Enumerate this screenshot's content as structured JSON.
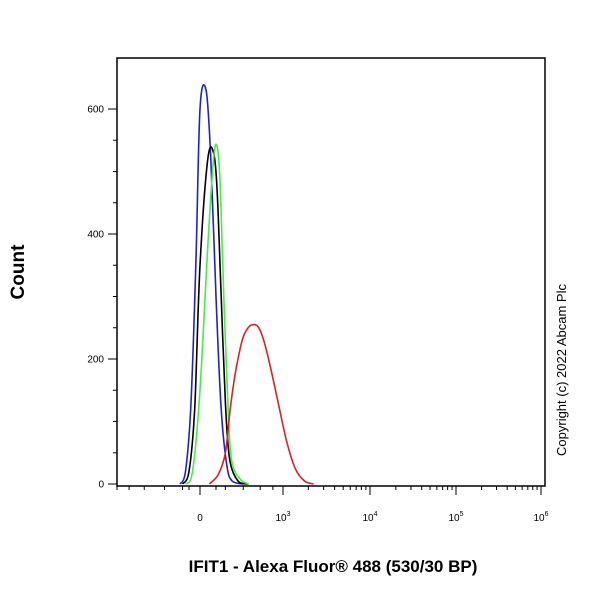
{
  "chart_data": {
    "type": "line",
    "xlabel": "IFIT1 - Alexa Fluor® 488 (530/30 BP)",
    "ylabel": "Count",
    "y_ticks": [
      0,
      200,
      400,
      600
    ],
    "x_ticks": [
      {
        "value": 0,
        "base": "0",
        "exp": ""
      },
      {
        "value": 1000,
        "base": "10",
        "exp": "3"
      },
      {
        "value": 10000,
        "base": "10",
        "exp": "4"
      },
      {
        "value": 100000,
        "base": "10",
        "exp": "5"
      },
      {
        "value": 1000000,
        "base": "10",
        "exp": "6"
      }
    ],
    "x_scale": "biexponential",
    "ylim": [
      0,
      600
    ],
    "grid": false,
    "annotation": "Copyright (c) 2022 Abcam Plc",
    "series": [
      {
        "color": "#2020d0",
        "x": [
          -250,
          -150,
          -80,
          -30,
          0,
          30,
          60,
          100,
          150,
          220,
          300,
          400
        ],
        "y": [
          0,
          20,
          120,
          350,
          600,
          630,
          520,
          300,
          120,
          30,
          5,
          0
        ]
      },
      {
        "color": "#000000",
        "x": [
          -200,
          -100,
          -40,
          0,
          40,
          80,
          110,
          150,
          200,
          260,
          350,
          450
        ],
        "y": [
          0,
          20,
          120,
          350,
          520,
          530,
          470,
          300,
          130,
          40,
          5,
          0
        ]
      },
      {
        "color": "#44ee44",
        "x": [
          -150,
          -60,
          0,
          40,
          80,
          110,
          140,
          180,
          230,
          290,
          370,
          460
        ],
        "y": [
          0,
          20,
          150,
          380,
          520,
          540,
          480,
          300,
          140,
          40,
          8,
          0
        ]
      },
      {
        "color": "#dd2020",
        "x": [
          50,
          120,
          200,
          270,
          330,
          390,
          450,
          520,
          580,
          650,
          750,
          900,
          1100,
          1400,
          1800,
          2300
        ],
        "y": [
          0,
          15,
          50,
          120,
          180,
          230,
          250,
          255,
          250,
          230,
          190,
          130,
          70,
          25,
          5,
          0
        ]
      }
    ]
  }
}
